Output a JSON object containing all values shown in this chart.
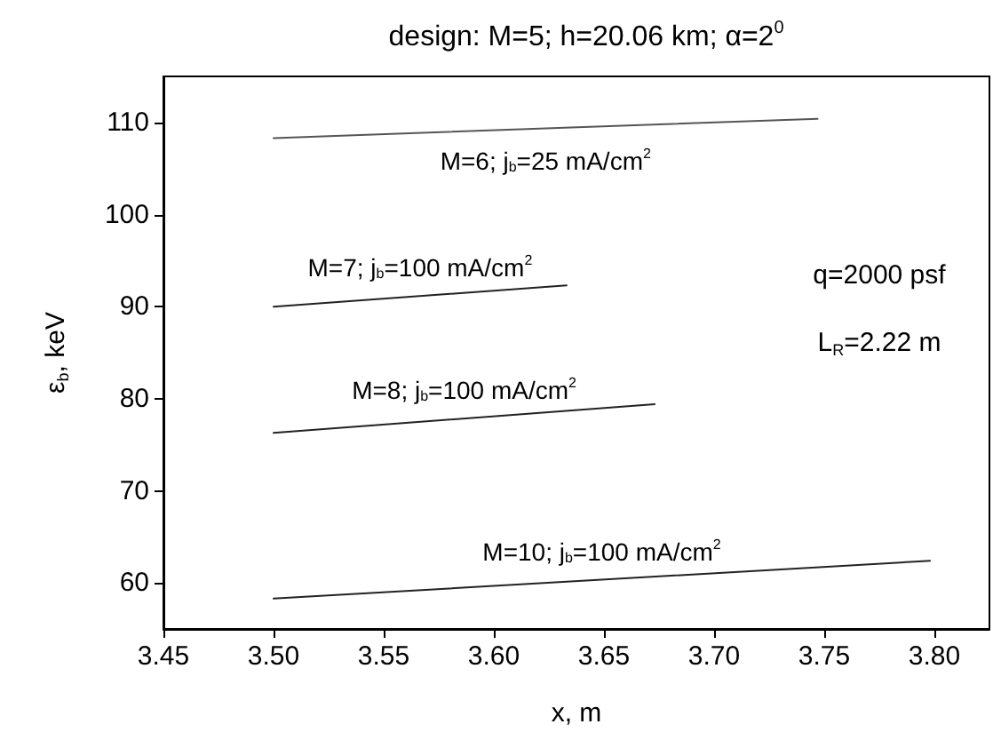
{
  "chart_data": {
    "type": "line",
    "title": "design: M=5; h=20.06 km; α=2$^{0}$",
    "xlabel": "x, m",
    "ylabel": "ε$_{b}$, keV",
    "annotations": [
      "q=2000 psf",
      "L$_{R}$=2.22 m"
    ],
    "xlim": [
      3.45,
      3.825
    ],
    "xticks": [
      {
        "value": 3.45,
        "label": "3.45"
      },
      {
        "value": 3.5,
        "label": "3.50"
      },
      {
        "value": 3.55,
        "label": "3.55"
      },
      {
        "value": 3.6,
        "label": "3.60"
      },
      {
        "value": 3.65,
        "label": "3.65"
      },
      {
        "value": 3.7,
        "label": "3.70"
      },
      {
        "value": 3.75,
        "label": "3.75"
      },
      {
        "value": 3.8,
        "label": "3.80"
      }
    ],
    "ylim": [
      55,
      115
    ],
    "yticks": [
      60,
      70,
      80,
      90,
      100,
      110
    ],
    "grid": false,
    "legend": false,
    "marker": "none",
    "line_style": "solid",
    "series": [
      {
        "name": "M=6; j$_{b}$=25 mA/cm$^{2}$",
        "color": "#555555",
        "x": [
          3.5,
          3.747
        ],
        "values": [
          108.3,
          110.4
        ]
      },
      {
        "name": "M=7; j$_{b}$=100 mA/cm$^{2}$",
        "color": "#222222",
        "x": [
          3.5,
          3.633
        ],
        "values": [
          90.0,
          92.3
        ]
      },
      {
        "name": "M=8; j$_{b}$=100 mA/cm$^{2}$",
        "color": "#222222",
        "x": [
          3.5,
          3.673
        ],
        "values": [
          76.3,
          79.4
        ]
      },
      {
        "name": "M=10; j$_{b}$=100 mA/cm$^{2}$",
        "color": "#222222",
        "x": [
          3.5,
          3.798
        ],
        "values": [
          58.3,
          62.4
        ]
      }
    ]
  }
}
